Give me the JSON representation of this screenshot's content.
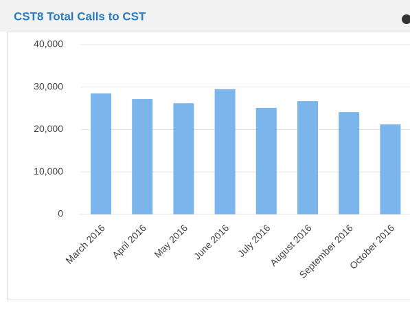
{
  "chart_data": {
    "type": "bar",
    "title": "CST8 Total Calls to CST",
    "categories": [
      "March 2016",
      "April 2016",
      "May 2016",
      "June 2016",
      "July 2016",
      "August 2016",
      "September 2016",
      "October 2016"
    ],
    "values": [
      28500,
      27200,
      26200,
      29500,
      25100,
      26700,
      24100,
      21200
    ],
    "color": "#7cb5ec",
    "ylim": [
      0,
      40000
    ],
    "yticks": [
      0,
      {
        "value": 10000,
        "label": "10,000"
      },
      {
        "value": 20000,
        "label": "20,000"
      },
      {
        "value": 30000,
        "label": "30,000"
      },
      {
        "value": 40000,
        "label": "40,000"
      }
    ],
    "grid": true
  }
}
